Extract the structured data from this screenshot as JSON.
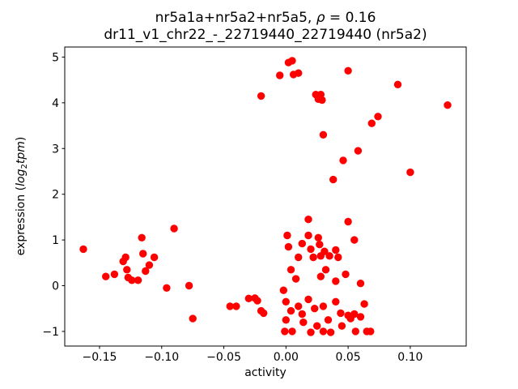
{
  "chart_data": {
    "type": "scatter",
    "title": "nr5a1a+nr5a2+nr5a5, ρ = 0.16",
    "title_parts": {
      "prefix": "nr5a1a+nr5a2+nr5a5, ",
      "rho": "ρ",
      "suffix": " = 0.16"
    },
    "subtitle": "dr11_v1_chr22_-_22719440_22719440 (nr5a2)",
    "correlation_rho": 0.16,
    "xlabel": "activity",
    "ylabel": "expression (log₂tpm)",
    "ylabel_parts": {
      "normal1": "expression (",
      "italic1": "log",
      "subscript": "2",
      "italic2": "tpm",
      "normal2": ")"
    },
    "marker_color": "#ff0000",
    "axes_color": "#000000",
    "background_color": "#ffffff",
    "grid": false,
    "legend": false,
    "xlim": [
      -0.178,
      0.145
    ],
    "ylim": [
      -1.32,
      5.22
    ],
    "xticks": [
      -0.15,
      -0.1,
      -0.05,
      0.0,
      0.05,
      0.1
    ],
    "xtick_labels": [
      "−0.15",
      "−0.10",
      "−0.05",
      "0.00",
      "0.05",
      "0.10"
    ],
    "yticks": [
      -1,
      0,
      1,
      2,
      3,
      4,
      5
    ],
    "ytick_labels": [
      "−1",
      "0",
      "1",
      "2",
      "3",
      "4",
      "5"
    ],
    "points": [
      [
        -0.163,
        0.8
      ],
      [
        -0.145,
        0.2
      ],
      [
        -0.138,
        0.25
      ],
      [
        -0.131,
        0.53
      ],
      [
        -0.129,
        0.62
      ],
      [
        -0.128,
        0.35
      ],
      [
        -0.127,
        0.18
      ],
      [
        -0.124,
        0.12
      ],
      [
        -0.119,
        0.12
      ],
      [
        -0.116,
        1.05
      ],
      [
        -0.115,
        0.7
      ],
      [
        -0.113,
        0.32
      ],
      [
        -0.11,
        0.45
      ],
      [
        -0.106,
        0.62
      ],
      [
        -0.096,
        -0.05
      ],
      [
        -0.09,
        1.25
      ],
      [
        -0.078,
        0.0
      ],
      [
        -0.075,
        -0.72
      ],
      [
        -0.045,
        -0.45
      ],
      [
        -0.04,
        -0.45
      ],
      [
        -0.03,
        -0.28
      ],
      [
        -0.025,
        -0.27
      ],
      [
        -0.023,
        -0.33
      ],
      [
        -0.02,
        -0.55
      ],
      [
        -0.018,
        -0.6
      ],
      [
        -0.02,
        4.15
      ],
      [
        -0.005,
        4.6
      ],
      [
        0.002,
        4.88
      ],
      [
        0.005,
        4.92
      ],
      [
        0.006,
        4.62
      ],
      [
        0.01,
        4.65
      ],
      [
        0.024,
        4.18
      ],
      [
        0.026,
        4.08
      ],
      [
        0.028,
        4.18
      ],
      [
        0.029,
        4.06
      ],
      [
        0.03,
        3.3
      ],
      [
        0.038,
        2.32
      ],
      [
        0.046,
        2.74
      ],
      [
        0.05,
        4.7
      ],
      [
        0.058,
        2.95
      ],
      [
        0.069,
        3.55
      ],
      [
        0.074,
        3.7
      ],
      [
        0.09,
        4.4
      ],
      [
        0.1,
        2.48
      ],
      [
        0.13,
        3.95
      ],
      [
        0.001,
        1.1
      ],
      [
        0.002,
        0.85
      ],
      [
        0.004,
        0.35
      ],
      [
        0.01,
        0.62
      ],
      [
        0.013,
        0.92
      ],
      [
        0.018,
        1.45
      ],
      [
        0.018,
        1.1
      ],
      [
        0.02,
        0.8
      ],
      [
        0.022,
        0.62
      ],
      [
        0.026,
        1.05
      ],
      [
        0.027,
        0.9
      ],
      [
        0.028,
        0.65
      ],
      [
        0.031,
        0.75
      ],
      [
        0.032,
        0.35
      ],
      [
        0.035,
        0.65
      ],
      [
        0.04,
        0.78
      ],
      [
        0.042,
        0.62
      ],
      [
        0.05,
        1.4
      ],
      [
        0.055,
        1.0
      ],
      [
        -0.002,
        -0.1
      ],
      [
        0.0,
        -0.35
      ],
      [
        0.0,
        -0.75
      ],
      [
        -0.001,
        -1.0
      ],
      [
        0.004,
        -0.55
      ],
      [
        0.005,
        -1.0
      ],
      [
        0.008,
        0.15
      ],
      [
        0.01,
        -0.45
      ],
      [
        0.013,
        -0.62
      ],
      [
        0.014,
        -0.8
      ],
      [
        0.018,
        -0.3
      ],
      [
        0.02,
        -1.02
      ],
      [
        0.023,
        -0.5
      ],
      [
        0.025,
        -0.88
      ],
      [
        0.028,
        0.2
      ],
      [
        0.03,
        -0.45
      ],
      [
        0.03,
        -1.0
      ],
      [
        0.034,
        -0.75
      ],
      [
        0.036,
        -1.02
      ],
      [
        0.04,
        0.1
      ],
      [
        0.04,
        -0.35
      ],
      [
        0.044,
        -0.6
      ],
      [
        0.045,
        -0.88
      ],
      [
        0.048,
        0.25
      ],
      [
        0.05,
        -0.65
      ],
      [
        0.052,
        -0.72
      ],
      [
        0.055,
        -0.62
      ],
      [
        0.056,
        -1.0
      ],
      [
        0.06,
        0.05
      ],
      [
        0.06,
        -0.68
      ],
      [
        0.063,
        -0.4
      ],
      [
        0.065,
        -1.0
      ],
      [
        0.068,
        -1.0
      ]
    ]
  }
}
